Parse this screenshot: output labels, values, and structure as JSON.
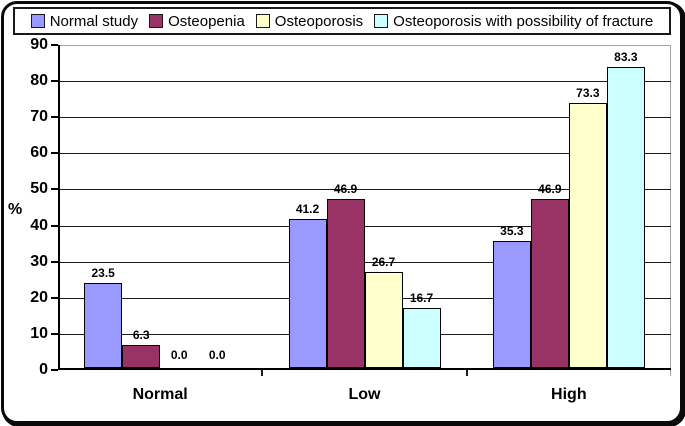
{
  "chart_data": {
    "type": "bar",
    "title": "",
    "xlabel": "",
    "ylabel": "%",
    "categories": [
      "Normal",
      "Low",
      "High"
    ],
    "series": [
      {
        "name": "Normal study",
        "color": "#9999FF",
        "values": [
          23.5,
          41.2,
          35.3
        ]
      },
      {
        "name": "Osteopenia",
        "color": "#993366",
        "values": [
          6.3,
          46.9,
          46.9
        ]
      },
      {
        "name": "Osteoporosis",
        "color": "#FFFFCC",
        "values": [
          0.0,
          26.7,
          73.3
        ]
      },
      {
        "name": "Osteoporosis with possibility of fracture",
        "color": "#CCFFFF",
        "values": [
          0.0,
          16.7,
          83.3
        ]
      }
    ],
    "ylim": [
      0,
      90
    ],
    "ytick_step": 10,
    "grid": true,
    "value_labels": true,
    "value_label_format": "0.0",
    "legend_position": "top",
    "bar_border_color": "#000000",
    "gridline_color": "#1a1a1a",
    "plot_border_color": "#a3a3a3",
    "frame_border_color": "#0a0a0a"
  }
}
